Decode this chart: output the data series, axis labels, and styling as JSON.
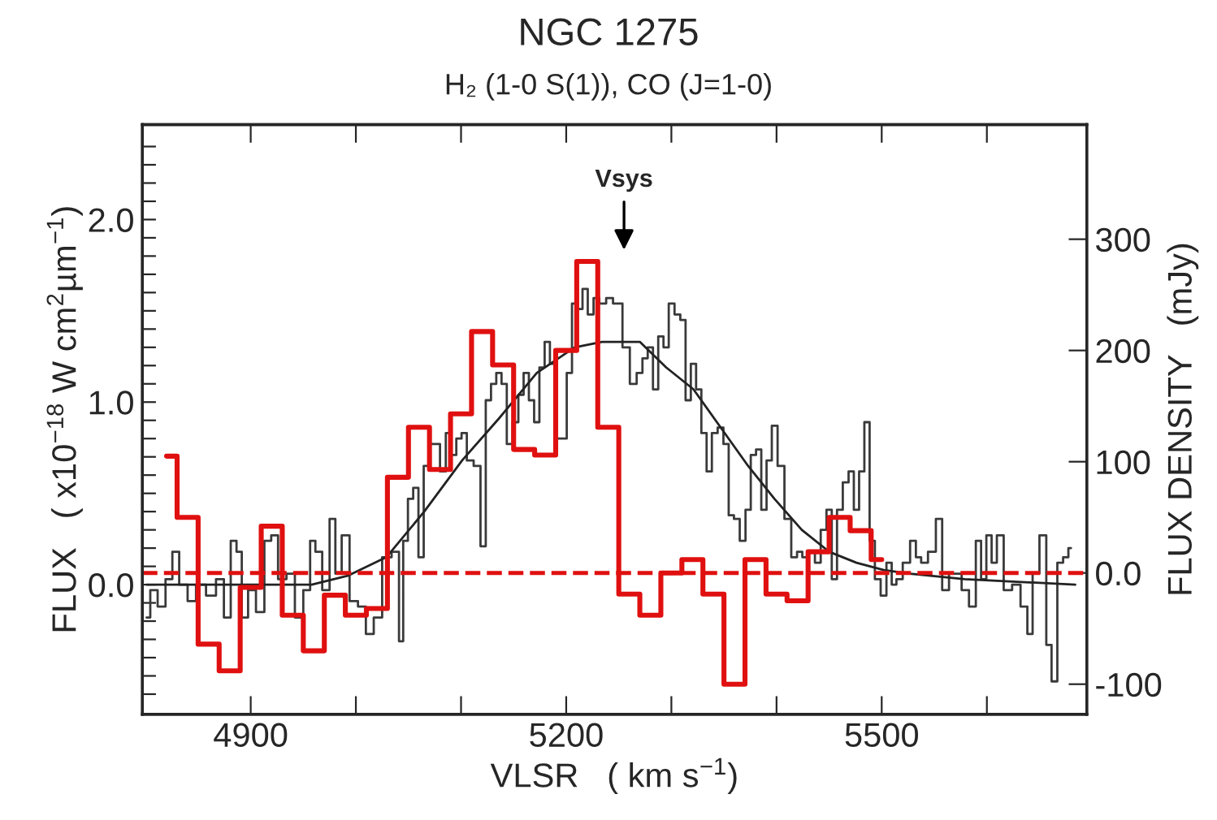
{
  "chart_data": {
    "type": "step",
    "title": "NGC 1275",
    "subtitle": "H₂ (1-0 S(1)), CO (J=1-0)",
    "xlabel": "VLSR   ( km s$^{−1}$)",
    "ylabel": "FLUX   ( x10$^{−18}$ W cm$^{2}$µm$^{−1}$)",
    "y2label": "FLUX DENSITY   (mJy)",
    "xlim": [
      4797,
      5695
    ],
    "xticks": [
      4900,
      {
        "value": 5000,
        "label": null
      },
      {
        "value": 5100,
        "label": null
      },
      5200,
      {
        "value": 5300,
        "label": null
      },
      {
        "value": 5400,
        "label": null
      },
      5500,
      {
        "value": 5600,
        "label": null
      }
    ],
    "ylim": [
      -0.71,
      2.52
    ],
    "yticks": [
      {
        "value": -0.6,
        "label": null
      },
      {
        "value": -0.5,
        "label": null
      },
      {
        "value": -0.4,
        "label": null
      },
      {
        "value": -0.3,
        "label": null
      },
      {
        "value": -0.2,
        "label": null
      },
      {
        "value": -0.1,
        "label": null
      },
      {
        "value": 0,
        "label": "0.0"
      },
      {
        "value": 0.1,
        "label": null
      },
      {
        "value": 0.2,
        "label": null
      },
      {
        "value": 0.3,
        "label": null
      },
      {
        "value": 0.4,
        "label": null
      },
      {
        "value": 0.5,
        "label": null
      },
      {
        "value": 0.6,
        "label": null
      },
      {
        "value": 0.7,
        "label": null
      },
      {
        "value": 0.8,
        "label": null
      },
      {
        "value": 0.9,
        "label": null
      },
      {
        "value": 1,
        "label": "1.0"
      },
      {
        "value": 1.1,
        "label": null
      },
      {
        "value": 1.2,
        "label": null
      },
      {
        "value": 1.3,
        "label": null
      },
      {
        "value": 1.4,
        "label": null
      },
      {
        "value": 1.5,
        "label": null
      },
      {
        "value": 1.6,
        "label": null
      },
      {
        "value": 1.7,
        "label": null
      },
      {
        "value": 1.8,
        "label": null
      },
      {
        "value": 1.9,
        "label": null
      },
      {
        "value": 2,
        "label": "2.0"
      },
      {
        "value": 2.1,
        "label": null
      },
      {
        "value": 2.2,
        "label": null
      },
      {
        "value": 2.3,
        "label": null
      },
      {
        "value": 2.4,
        "label": null
      }
    ],
    "y2lim": [
      -127,
      403
    ],
    "y2ticks": [
      -100,
      {
        "value": 0,
        "label": "0.0"
      },
      100,
      200,
      300
    ],
    "grid": false,
    "legend": false,
    "ref_lines": [
      {
        "axis": "y2",
        "value": 0,
        "label": null,
        "color": "#e01010",
        "line_style": "dashed"
      }
    ],
    "annotations": [
      "Vsys"
    ],
    "series": [
      {
        "color": "#3a3a3a",
        "x": [
          4801,
          4808,
          4815,
          4823,
          4828,
          4836,
          4844,
          4852,
          4863,
          4871,
          4878,
          4884,
          4889,
          4894,
          4901,
          4909,
          4917,
          4922,
          4930,
          4938,
          4946,
          4954,
          4959,
          4964,
          4972,
          4978,
          4983,
          4990,
          4998,
          5006,
          5013,
          5021,
          5029,
          5039,
          5043,
          5047,
          5052,
          5057,
          5062,
          5067,
          5072,
          5077,
          5083,
          5088,
          5093,
          5098,
          5103,
          5108,
          5116,
          5121,
          5126,
          5131,
          5136,
          5141,
          5146,
          5152,
          5157,
          5162,
          5167,
          5172,
          5177,
          5182,
          5187,
          5193,
          5198,
          5203,
          5208,
          5213,
          5218,
          5223,
          5229,
          5234,
          5242,
          5247,
          5250,
          5257,
          5264,
          5270,
          5275,
          5280,
          5285,
          5290,
          5295,
          5300,
          5306,
          5311,
          5316,
          5321,
          5326,
          5331,
          5336,
          5341,
          5347,
          5352,
          5357,
          5362,
          5368,
          5373,
          5378,
          5383,
          5388,
          5393,
          5398,
          5404,
          5411,
          5417,
          5422,
          5427,
          5434,
          5439,
          5445,
          5450,
          5455,
          5460,
          5466,
          5471,
          5476,
          5481,
          5486,
          5491,
          5496,
          5502,
          5507,
          5512,
          5516,
          5524,
          5530,
          5535,
          5540,
          5548,
          5555,
          5560,
          5568,
          5573,
          5579,
          5587,
          5592,
          5597,
          5602,
          5607,
          5612,
          5620,
          5628,
          5636,
          5641,
          5646,
          5654,
          5659,
          5664,
          5670,
          5675,
          5680
        ],
        "values": [
          -0.18,
          -0.03,
          -0.12,
          0.03,
          0.18,
          0.0,
          -0.09,
          0.0,
          -0.06,
          0.03,
          -0.18,
          0.24,
          0.18,
          -0.18,
          -0.03,
          -0.15,
          0.24,
          0.27,
          0.03,
          0.06,
          -0.18,
          -0.03,
          0.24,
          0.18,
          -0.03,
          0.36,
          0.06,
          0.27,
          -0.09,
          -0.12,
          -0.27,
          -0.18,
          0.15,
          0.18,
          -0.31,
          0.24,
          0.47,
          0.53,
          0.15,
          0.65,
          0.77,
          0.77,
          0.62,
          0.83,
          0.71,
          0.8,
          0.83,
          0.68,
          0.65,
          0.21,
          1.01,
          1.1,
          1.16,
          1.1,
          0.77,
          0.89,
          1.04,
          1.16,
          1.01,
          0.89,
          1.19,
          1.33,
          1.21,
          0.8,
          0.8,
          1.16,
          1.54,
          1.51,
          1.62,
          1.48,
          1.57,
          1.54,
          1.57,
          1.54,
          1.54,
          1.3,
          1.1,
          1.16,
          1.24,
          1.3,
          1.07,
          1.36,
          1.3,
          1.54,
          1.48,
          1.45,
          1.01,
          1.21,
          1.07,
          0.83,
          0.62,
          0.83,
          0.86,
          0.77,
          0.38,
          0.36,
          0.24,
          0.41,
          0.71,
          0.74,
          0.41,
          0.68,
          0.87,
          0.65,
          0.36,
          0.15,
          0.18,
          0.15,
          0.18,
          0.12,
          0.3,
          0.41,
          0.03,
          0.41,
          0.56,
          0.62,
          0.41,
          0.62,
          0.89,
          0.24,
          0.03,
          -0.06,
          0.12,
          0.0,
          0.03,
          0.12,
          0.24,
          0.15,
          0.12,
          0.18,
          0.36,
          -0.03,
          0.06,
          0.06,
          -0.03,
          -0.12,
          0.24,
          0.03,
          0.27,
          0.12,
          0.27,
          -0.03,
          0.0,
          -0.12,
          -0.27,
          0.06,
          0.27,
          -0.33,
          -0.53,
          0.12,
          0.15,
          0.2
        ]
      },
      {
        "type": "line",
        "color": "#222222",
        "x": [
          4801,
          4900,
          4958,
          4993,
          5029,
          5065,
          5101,
          5136,
          5172,
          5208,
          5234,
          5270,
          5295,
          5321,
          5347,
          5373,
          5398,
          5424,
          5450,
          5476,
          5502,
          5527,
          5579,
          5684
        ],
        "values": [
          0.0,
          0.0,
          0.0,
          0.05,
          0.15,
          0.4,
          0.68,
          0.91,
          1.16,
          1.3,
          1.33,
          1.33,
          1.19,
          1.07,
          0.86,
          0.65,
          0.47,
          0.3,
          0.18,
          0.12,
          0.08,
          0.06,
          0.03,
          0.0
        ]
      },
      {
        "type": "step",
        "axis": "y2",
        "color": "#e01010",
        "x": [
          4820,
          4840,
          4860,
          4880,
          4900,
          4920,
          4940,
          4960,
          4980,
          5000,
          5020,
          5040,
          5060,
          5080,
          5100,
          5120,
          5140,
          5160,
          5180,
          5200,
          5220,
          5240,
          5260,
          5280,
          5300,
          5320,
          5340,
          5360,
          5380,
          5400,
          5420,
          5440,
          5460,
          5480,
          5500
        ],
        "values": [
          105,
          50,
          -64,
          -88,
          -13,
          42,
          -38,
          -70,
          -20,
          -38,
          -32,
          86,
          131,
          93,
          143,
          217,
          187,
          111,
          106,
          200,
          280,
          131,
          -19,
          -38,
          0,
          12,
          -19,
          -100,
          12,
          -19,
          -25,
          19,
          50,
          38,
          12
        ]
      }
    ]
  }
}
